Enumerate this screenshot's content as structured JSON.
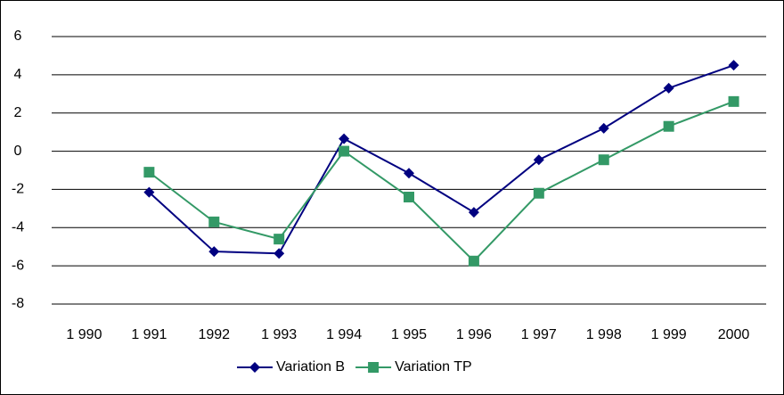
{
  "chart_data": {
    "type": "line",
    "categories": [
      "1 990",
      "1 991",
      "1992",
      "1 993",
      "1 994",
      "1 995",
      "1 996",
      "1 997",
      "1 998",
      "1 999",
      "2000"
    ],
    "series": [
      {
        "name": "Variation B",
        "color": "#000080",
        "marker": "diamond",
        "values": [
          null,
          -2.15,
          -5.25,
          -5.35,
          0.65,
          -1.15,
          -3.2,
          -0.45,
          1.2,
          3.3,
          4.5
        ]
      },
      {
        "name": "Variation TP",
        "color": "#339966",
        "marker": "square",
        "values": [
          null,
          -1.1,
          -3.7,
          -4.6,
          0.0,
          -2.4,
          -5.75,
          -2.2,
          -0.45,
          1.3,
          2.6
        ]
      }
    ],
    "ylim": [
      -8,
      6
    ],
    "yticks": [
      -8,
      -6,
      -4,
      -2,
      0,
      2,
      4,
      6
    ],
    "grid": true,
    "legend": "bottom"
  }
}
